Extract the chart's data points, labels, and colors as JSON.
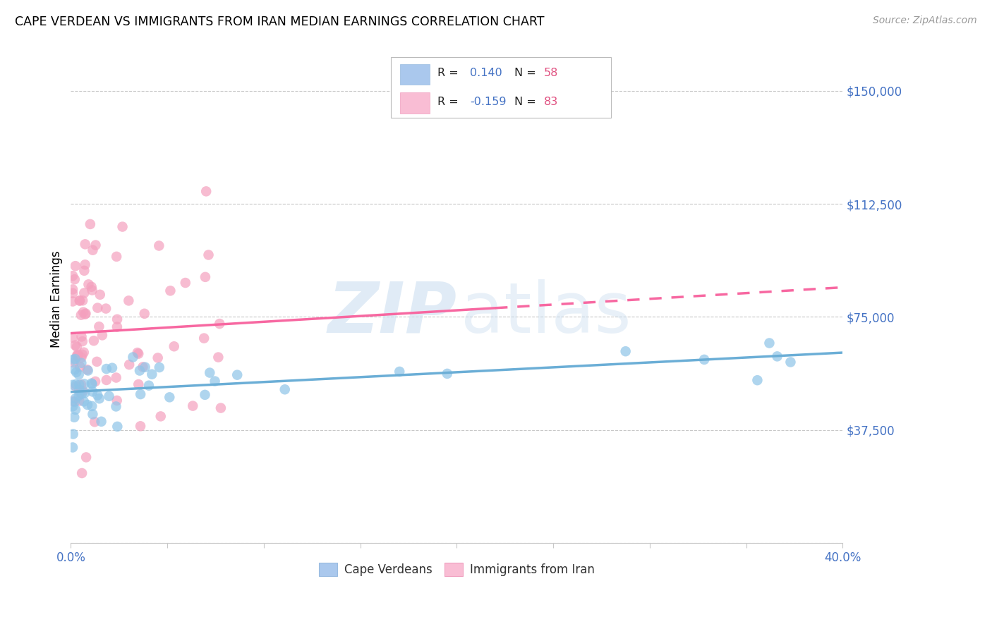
{
  "title": "CAPE VERDEAN VS IMMIGRANTS FROM IRAN MEDIAN EARNINGS CORRELATION CHART",
  "source": "Source: ZipAtlas.com",
  "ylabel": "Median Earnings",
  "yticks": [
    0,
    37500,
    75000,
    112500,
    150000
  ],
  "ytick_labels": [
    "",
    "$37,500",
    "$75,000",
    "$112,500",
    "$150,000"
  ],
  "xmin": 0.0,
  "xmax": 0.4,
  "ymin": 0,
  "ymax": 162000,
  "blue_color": "#6baed6",
  "pink_color": "#f768a1",
  "blue_scatter": "#8ec4e8",
  "pink_scatter": "#f4a0be",
  "blue_fill": "#aac8ed",
  "pink_fill": "#f9bdd4",
  "axis_label_color": "#4472c4",
  "grid_color": "#c8c8c8",
  "r_blue": 0.14,
  "r_pink": -0.159,
  "n_blue": 58,
  "n_pink": 83,
  "legend_r_color": "#4472c4",
  "legend_n_color": "#e05080",
  "watermark_zip_color": "#d0e4f5",
  "watermark_atlas_color": "#c8ddf0"
}
